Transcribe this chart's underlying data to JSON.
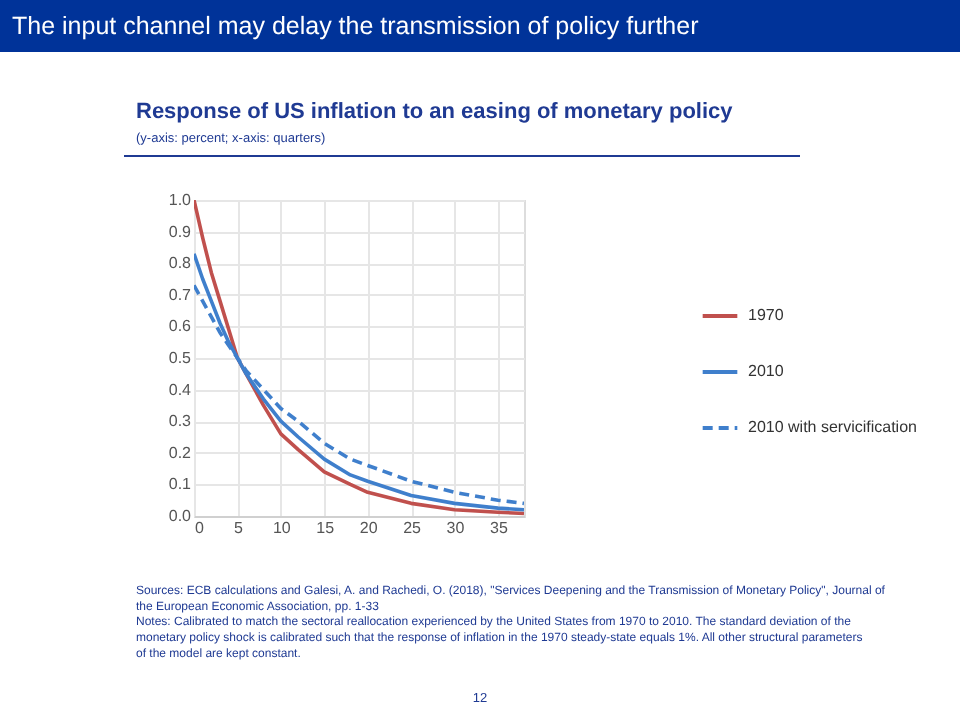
{
  "chart_data": {
    "type": "line",
    "title": "The input channel may delay the transmission of policy further",
    "subtitle": "Response of US inflation to an easing of monetary policy",
    "annotations": [
      "(y-axis: percent; x-axis: quarters)",
      "Sources: ECB calculations and Galesi, A. and Rachedi, O. (2018), \"Services Deepening and the Transmission of Monetary Policy\", Journal of the European Economic Association, pp. 1-33",
      "Notes: Calibrated to match the sectoral reallocation experienced by the United States from 1970 to 2010. The standard deviation of the monetary policy shock is calibrated such that the response of inflation in the 1970 steady-state equals 1%. All other structural parameters of the model are kept constant.",
      "12"
    ],
    "x": [
      0,
      1,
      2,
      3,
      4,
      5,
      6,
      8,
      10,
      12,
      15,
      18,
      20,
      25,
      30,
      35,
      38
    ],
    "series": [
      {
        "name": "1970",
        "color": "#c0504d",
        "line_style": "solid",
        "values": [
          1.0,
          0.88,
          0.77,
          0.68,
          0.59,
          0.5,
          0.45,
          0.35,
          0.26,
          0.21,
          0.14,
          0.1,
          0.075,
          0.04,
          0.02,
          0.012,
          0.008
        ]
      },
      {
        "name": "2010",
        "color": "#3f7fcc",
        "line_style": "solid",
        "values": [
          0.83,
          0.75,
          0.68,
          0.61,
          0.55,
          0.5,
          0.45,
          0.37,
          0.3,
          0.25,
          0.18,
          0.13,
          0.11,
          0.065,
          0.04,
          0.025,
          0.02
        ]
      },
      {
        "name": "2010 with servicification",
        "color": "#3f7fcc",
        "line_style": "dashed",
        "values": [
          0.73,
          0.68,
          0.63,
          0.58,
          0.54,
          0.5,
          0.46,
          0.4,
          0.34,
          0.3,
          0.23,
          0.18,
          0.16,
          0.11,
          0.075,
          0.05,
          0.04
        ]
      }
    ],
    "xlim": [
      0,
      38
    ],
    "xticks": [
      0,
      5,
      10,
      15,
      20,
      25,
      30,
      35
    ],
    "ylim": [
      0,
      1
    ],
    "yticks": [
      {
        "value": 0,
        "label": "0.0"
      },
      0.1,
      0.2,
      0.3,
      0.4,
      0.5,
      0.6,
      0.7,
      0.8,
      0.9,
      {
        "value": 1,
        "label": "1.0"
      }
    ],
    "grid": true,
    "legend": "right",
    "marker": "none"
  }
}
